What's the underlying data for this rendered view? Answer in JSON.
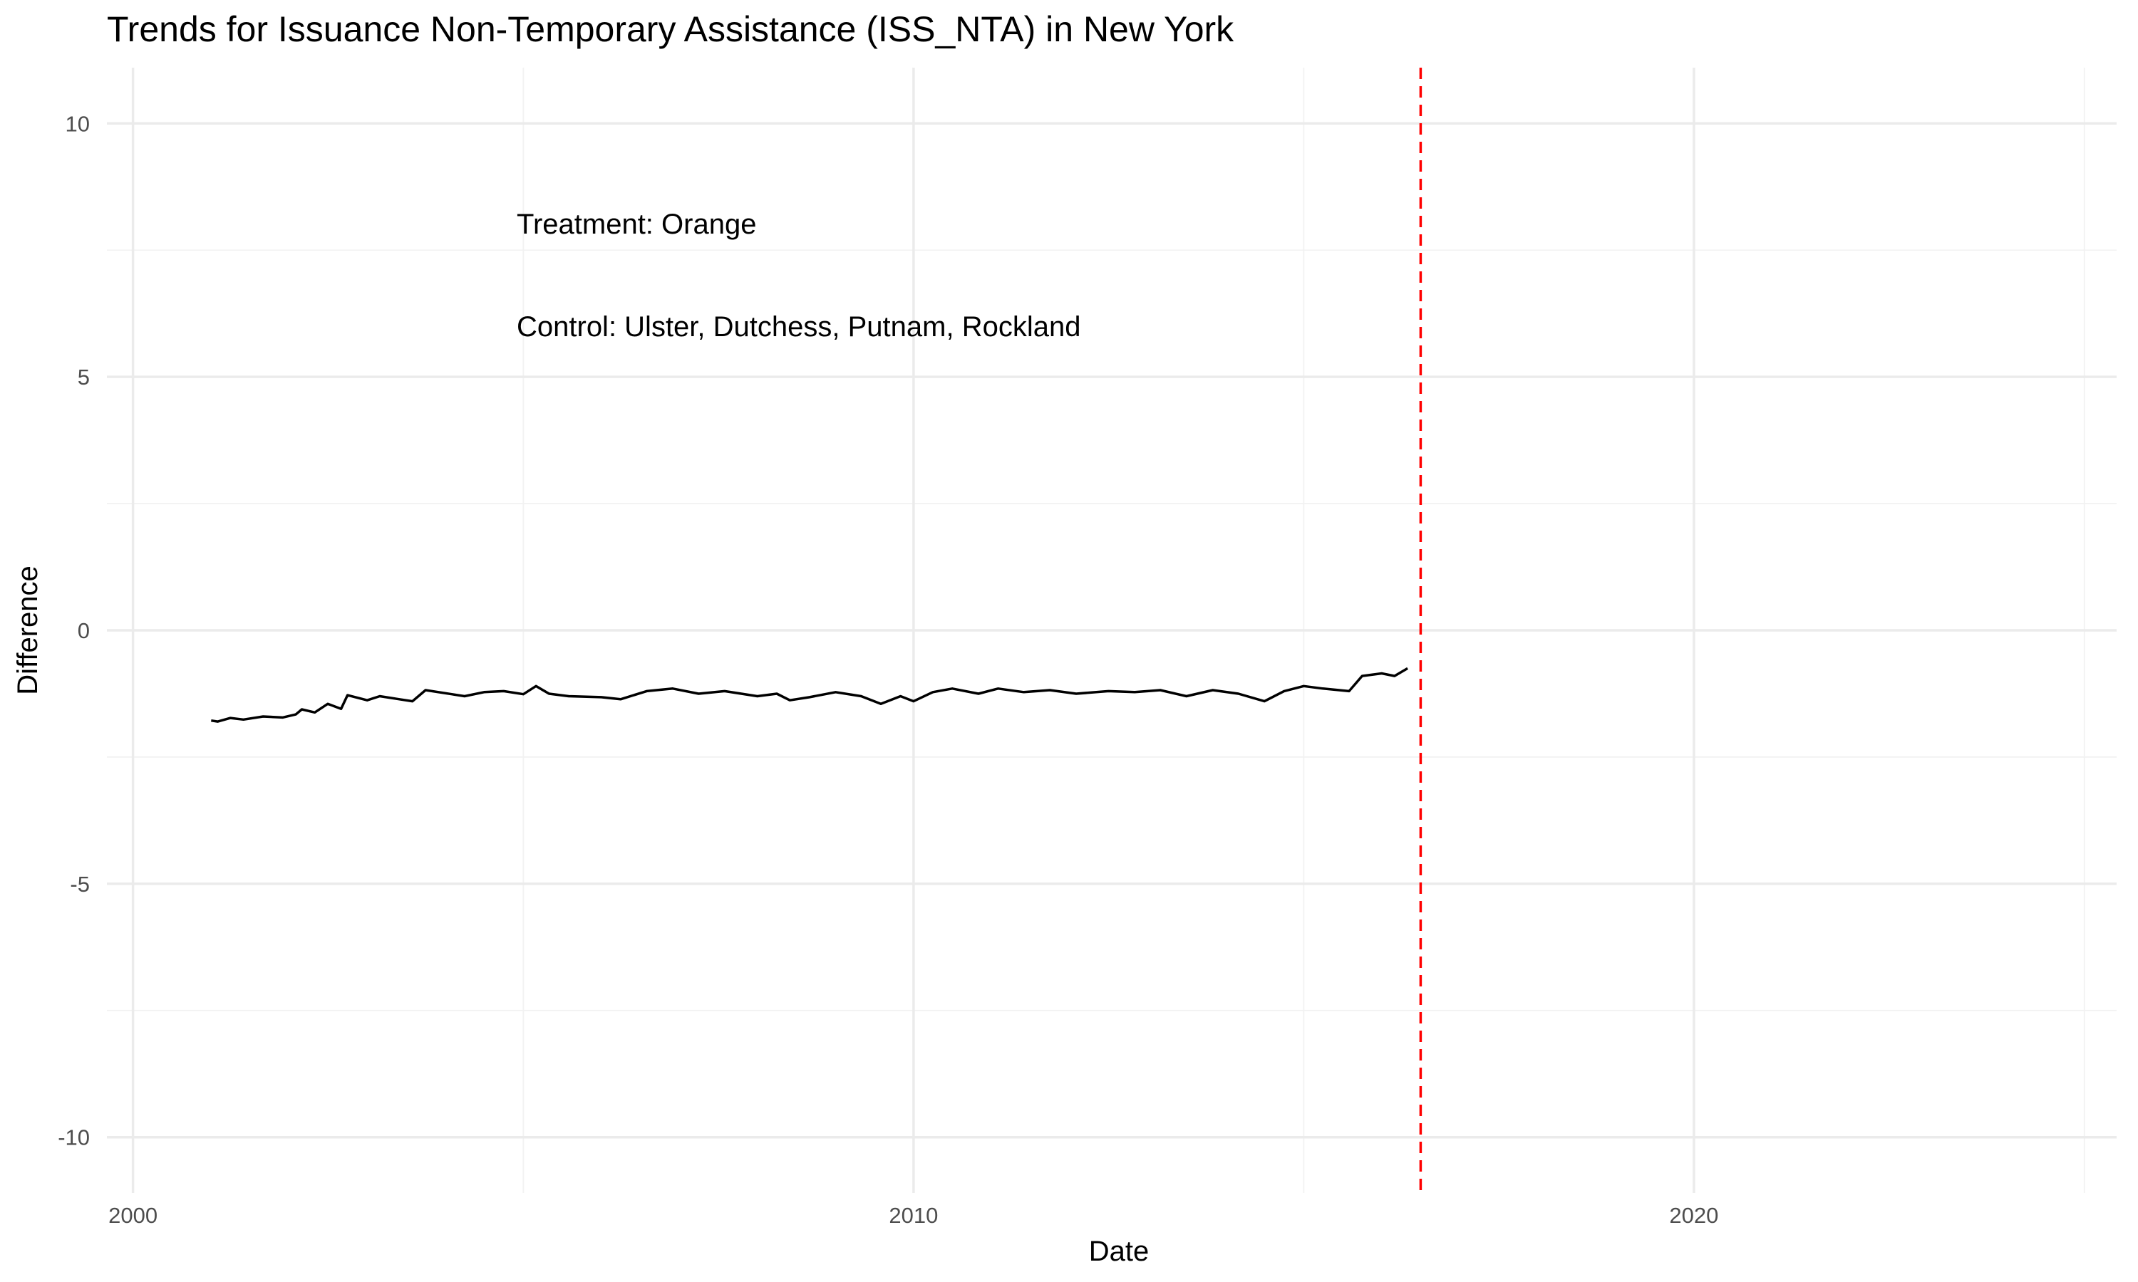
{
  "chart_data": {
    "type": "line",
    "title": "Trends for Issuance Non-Temporary Assistance (ISS_NTA) in New York",
    "xlabel": "Date",
    "ylabel": "Difference",
    "xlim": [
      "1999-09-01",
      "2025-06-01"
    ],
    "ylim": [
      -11.1,
      11.1
    ],
    "x_ticks": [
      {
        "value": "2000-01-01",
        "label": "2000"
      },
      {
        "value": "2010-01-01",
        "label": "2010"
      },
      {
        "value": "2020-01-01",
        "label": "2020"
      }
    ],
    "x_minor_ticks": [
      "2005-01-01",
      "2015-01-01",
      "2025-01-01"
    ],
    "y_ticks": [
      {
        "value": 10,
        "label": "10"
      },
      {
        "value": 5,
        "label": "5"
      },
      {
        "value": 0,
        "label": "0"
      },
      {
        "value": -5,
        "label": "-5"
      },
      {
        "value": -10,
        "label": "-10"
      }
    ],
    "y_minor_ticks": [
      7.5,
      2.5,
      -2.5,
      -7.5
    ],
    "grid": true,
    "legend": "none",
    "annotations": [
      "Treatment: Orange",
      "Control: Ulster, Dutchess, Putnam, Rockland"
    ],
    "reference_lines": [
      {
        "orientation": "vertical",
        "x": "2016-07-01",
        "style": "dashed",
        "color": "#ff0000"
      }
    ],
    "series": [
      {
        "color": "#000000",
        "points": [
          [
            "2001-01-01",
            -1.78
          ],
          [
            "2001-02-01",
            -1.8
          ],
          [
            "2001-04-01",
            -1.73
          ],
          [
            "2001-06-01",
            -1.76
          ],
          [
            "2001-09-01",
            -1.7
          ],
          [
            "2001-12-01",
            -1.72
          ],
          [
            "2002-02-01",
            -1.66
          ],
          [
            "2002-03-01",
            -1.56
          ],
          [
            "2002-05-01",
            -1.62
          ],
          [
            "2002-07-01",
            -1.45
          ],
          [
            "2002-09-01",
            -1.55
          ],
          [
            "2002-10-01",
            -1.28
          ],
          [
            "2003-01-01",
            -1.38
          ],
          [
            "2003-03-01",
            -1.3
          ],
          [
            "2003-06-01",
            -1.36
          ],
          [
            "2003-08-01",
            -1.4
          ],
          [
            "2003-10-01",
            -1.18
          ],
          [
            "2004-02-01",
            -1.26
          ],
          [
            "2004-04-01",
            -1.3
          ],
          [
            "2004-07-01",
            -1.22
          ],
          [
            "2004-10-01",
            -1.2
          ],
          [
            "2005-01-01",
            -1.26
          ],
          [
            "2005-03-01",
            -1.1
          ],
          [
            "2005-05-01",
            -1.25
          ],
          [
            "2005-08-01",
            -1.3
          ],
          [
            "2006-01-01",
            -1.32
          ],
          [
            "2006-04-01",
            -1.36
          ],
          [
            "2006-08-01",
            -1.2
          ],
          [
            "2006-12-01",
            -1.15
          ],
          [
            "2007-04-01",
            -1.25
          ],
          [
            "2007-08-01",
            -1.2
          ],
          [
            "2008-01-01",
            -1.3
          ],
          [
            "2008-04-01",
            -1.25
          ],
          [
            "2008-06-01",
            -1.38
          ],
          [
            "2008-09-01",
            -1.32
          ],
          [
            "2009-01-01",
            -1.22
          ],
          [
            "2009-05-01",
            -1.3
          ],
          [
            "2009-08-01",
            -1.45
          ],
          [
            "2009-11-01",
            -1.3
          ],
          [
            "2010-01-01",
            -1.4
          ],
          [
            "2010-04-01",
            -1.22
          ],
          [
            "2010-07-01",
            -1.15
          ],
          [
            "2010-11-01",
            -1.25
          ],
          [
            "2011-02-01",
            -1.15
          ],
          [
            "2011-06-01",
            -1.22
          ],
          [
            "2011-10-01",
            -1.18
          ],
          [
            "2012-02-01",
            -1.25
          ],
          [
            "2012-07-01",
            -1.2
          ],
          [
            "2012-11-01",
            -1.22
          ],
          [
            "2013-03-01",
            -1.18
          ],
          [
            "2013-07-01",
            -1.3
          ],
          [
            "2013-11-01",
            -1.18
          ],
          [
            "2014-03-01",
            -1.25
          ],
          [
            "2014-07-01",
            -1.4
          ],
          [
            "2014-10-01",
            -1.2
          ],
          [
            "2015-01-01",
            -1.1
          ],
          [
            "2015-04-01",
            -1.15
          ],
          [
            "2015-08-01",
            -1.2
          ],
          [
            "2015-10-01",
            -0.9
          ],
          [
            "2016-01-01",
            -0.85
          ],
          [
            "2016-03-01",
            -0.9
          ],
          [
            "2016-05-01",
            -0.75
          ]
        ]
      }
    ]
  }
}
